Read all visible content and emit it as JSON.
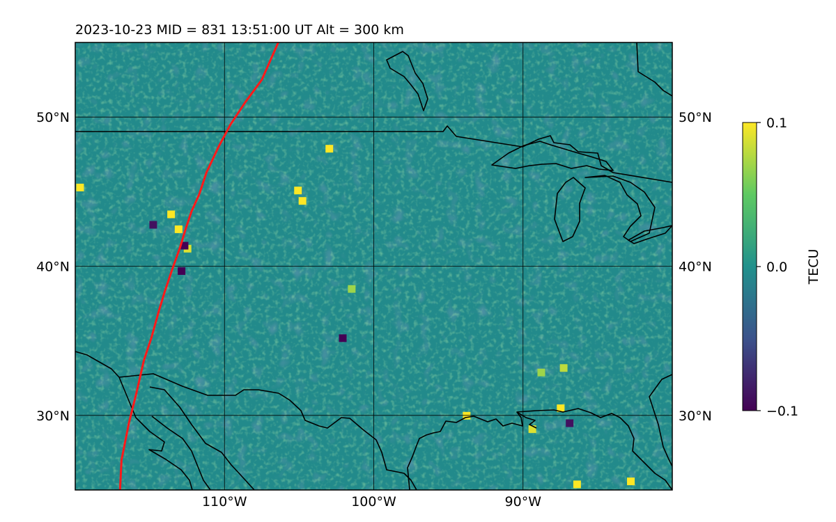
{
  "title": "2023-10-23  MID = 831    13:51:00  UT  Alt = 300 km",
  "map": {
    "extent": {
      "lon": [
        -120,
        -80
      ],
      "lat": [
        25,
        55
      ]
    },
    "longitude_labels": [
      {
        "lon": -110,
        "text": "110°W"
      },
      {
        "lon": -100,
        "text": "100°W"
      },
      {
        "lon": -90,
        "text": "90°W"
      }
    ],
    "latitude_labels": [
      {
        "lat": 50,
        "text": "50°N"
      },
      {
        "lat": 40,
        "text": "40°N"
      },
      {
        "lat": 30,
        "text": "30°N"
      }
    ],
    "gridlines": true,
    "track_color": "#ff1a1a",
    "track": [
      [
        -106.4,
        55
      ],
      [
        -107.5,
        52.5
      ],
      [
        -108.6,
        51
      ],
      [
        -109.6,
        49.5
      ],
      [
        -110.4,
        48
      ],
      [
        -111.2,
        46.3
      ],
      [
        -111.7,
        44.8
      ],
      [
        -112.2,
        43.7
      ],
      [
        -112.6,
        42.5
      ],
      [
        -113.0,
        41.2
      ],
      [
        -113.5,
        39.8
      ],
      [
        -114.0,
        38.3
      ],
      [
        -114.4,
        37.0
      ],
      [
        -114.9,
        35.2
      ],
      [
        -115.4,
        33.7
      ],
      [
        -115.9,
        31.5
      ],
      [
        -116.4,
        29.5
      ],
      [
        -116.9,
        27.0
      ],
      [
        -117.0,
        25
      ]
    ],
    "coastline_color": "#000000",
    "hotspots": [
      {
        "lon": -103.0,
        "lat": 47.9,
        "level": 0.1
      },
      {
        "lon": -105.1,
        "lat": 45.1,
        "level": 0.1
      },
      {
        "lon": -104.8,
        "lat": 44.4,
        "level": 0.1
      },
      {
        "lon": -113.6,
        "lat": 43.5,
        "level": 0.1
      },
      {
        "lon": -113.1,
        "lat": 42.5,
        "level": 0.1
      },
      {
        "lon": -112.5,
        "lat": 41.2,
        "level": 0.09
      },
      {
        "lon": -112.9,
        "lat": 39.7,
        "level": -0.1
      },
      {
        "lon": -112.7,
        "lat": 41.4,
        "level": -0.1
      },
      {
        "lon": -114.8,
        "lat": 42.8,
        "level": -0.09
      },
      {
        "lon": -102.1,
        "lat": 35.2,
        "level": -0.1
      },
      {
        "lon": -119.7,
        "lat": 45.3,
        "level": 0.1
      },
      {
        "lon": -93.8,
        "lat": 30.0,
        "level": 0.1
      },
      {
        "lon": -87.5,
        "lat": 30.5,
        "level": 0.1
      },
      {
        "lon": -86.9,
        "lat": 29.5,
        "level": -0.09
      },
      {
        "lon": -89.4,
        "lat": 29.1,
        "level": 0.09
      },
      {
        "lon": -82.8,
        "lat": 25.6,
        "level": 0.1
      },
      {
        "lon": -86.4,
        "lat": 25.4,
        "level": 0.1
      },
      {
        "lon": -101.5,
        "lat": 38.5,
        "level": 0.07
      },
      {
        "lon": -88.8,
        "lat": 32.9,
        "level": 0.07
      },
      {
        "lon": -87.3,
        "lat": 33.2,
        "level": 0.08
      }
    ]
  },
  "colorbar": {
    "label": "TECU",
    "ticks": [
      {
        "value": 0.1,
        "text": "0.1"
      },
      {
        "value": 0.0,
        "text": "0.0"
      },
      {
        "value": -0.1,
        "text": "−0.1"
      }
    ],
    "range": [
      -0.1,
      0.1
    ],
    "colormap": [
      "#440154",
      "#3b528b",
      "#21918c",
      "#5ec962",
      "#fde725"
    ]
  }
}
